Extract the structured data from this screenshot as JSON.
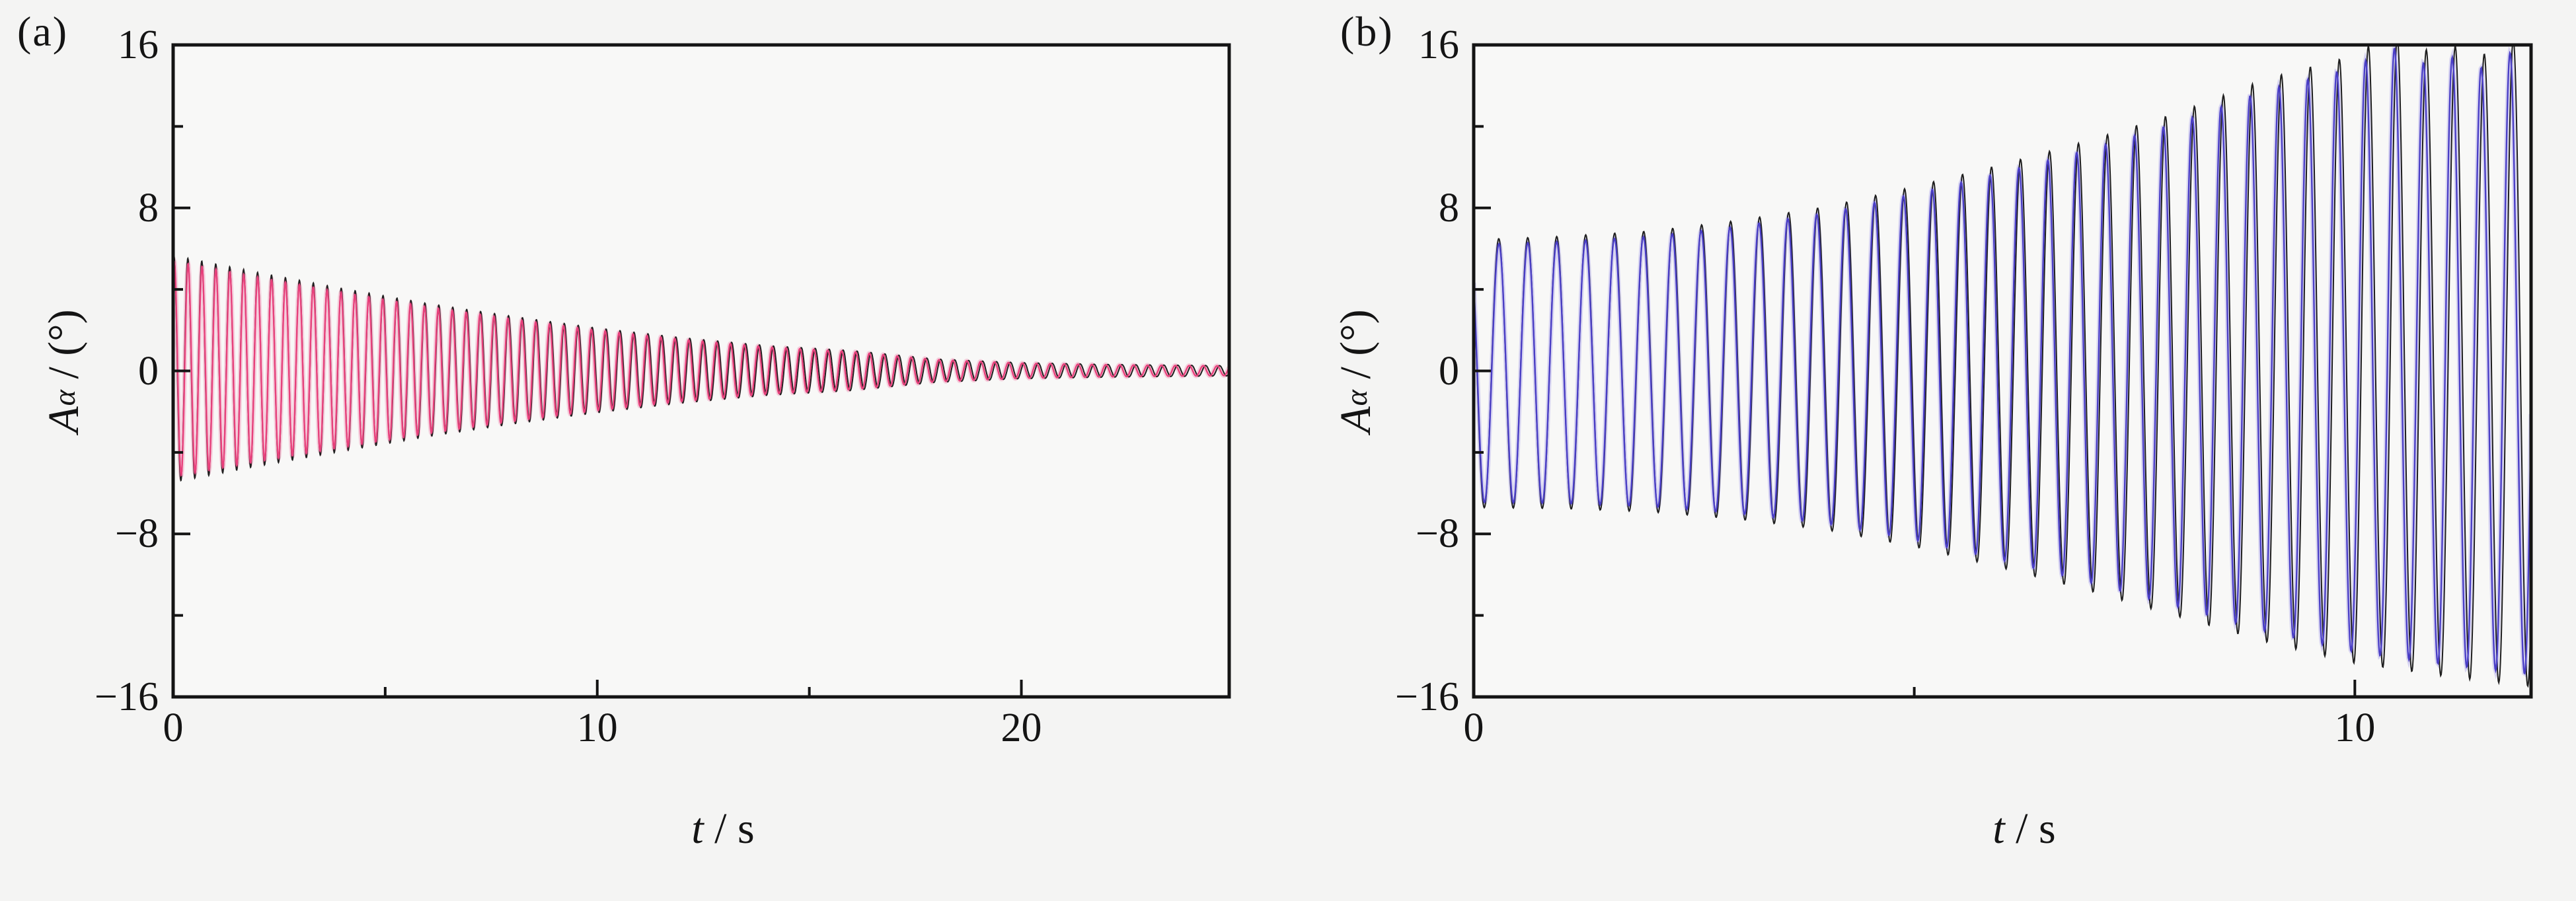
{
  "panels": [
    {
      "letter": "(a)",
      "ylabel_parts": {
        "var": "A",
        "sub": "α",
        "rest": " / (°)"
      },
      "xlabel_parts": {
        "var": "t",
        "rest": " / s"
      }
    },
    {
      "letter": "(b)",
      "ylabel_parts": {
        "var": "A",
        "sub": "α",
        "rest": " / (°)"
      },
      "xlabel_parts": {
        "var": "t",
        "rest": " / s"
      }
    }
  ],
  "colors": {
    "page_background": "#f4f4f3",
    "plot_background": "#f8f8f7",
    "axis": "#141414",
    "panel_a_line": "#e8417c",
    "panel_a_halo": "rgba(240,110,160,0.30)",
    "panel_b_line": "#4a3ec6",
    "panel_b_halo": "rgba(130,118,225,0.28)",
    "companion_line": "#1f1f1f"
  },
  "chart_data": [
    {
      "type": "line",
      "title": "",
      "xlabel": "t / s",
      "ylabel": "Aα / (°)",
      "xlim": [
        0,
        24.9
      ],
      "ylim": [
        -16,
        16
      ],
      "grid": false,
      "legend": "none",
      "xticks_major": [
        {
          "v": 0,
          "label": "0"
        },
        {
          "v": 10,
          "label": "10"
        },
        {
          "v": 20,
          "label": "20"
        }
      ],
      "xticks_minor": [
        5,
        15
      ],
      "yticks_major": [
        {
          "v": 16,
          "label": "16"
        },
        {
          "v": 8,
          "label": "8"
        },
        {
          "v": 0,
          "label": "0"
        },
        {
          "v": -8,
          "label": "−8"
        },
        {
          "v": -16,
          "label": "−16"
        }
      ],
      "yticks_minor": [
        12,
        4,
        -4,
        -12
      ],
      "behavior": "damped oscillation decaying toward 0",
      "frequency_hz": 3.05,
      "amplitude_envelope_deg": {
        "pos": [
          [
            0,
            5.4
          ],
          [
            2,
            4.6
          ],
          [
            4,
            3.85
          ],
          [
            6,
            3.15
          ],
          [
            8,
            2.55
          ],
          [
            10,
            2.0
          ],
          [
            12,
            1.55
          ],
          [
            14,
            1.18
          ],
          [
            16,
            0.95
          ],
          [
            17,
            0.75
          ],
          [
            18,
            0.55
          ],
          [
            20,
            0.38
          ],
          [
            22,
            0.3
          ],
          [
            24.9,
            0.24
          ]
        ],
        "neg": [
          [
            0,
            5.2
          ],
          [
            2,
            4.45
          ],
          [
            4,
            3.75
          ],
          [
            6,
            3.07
          ],
          [
            8,
            2.48
          ],
          [
            10,
            1.95
          ],
          [
            12,
            1.5
          ],
          [
            14,
            1.14
          ],
          [
            16,
            0.92
          ],
          [
            17,
            0.72
          ],
          [
            18,
            0.53
          ],
          [
            20,
            0.36
          ],
          [
            22,
            0.29
          ],
          [
            24.9,
            0.23
          ]
        ]
      },
      "series": [
        {
          "name": "dark-line",
          "color": "#1f1f1f",
          "width": 2.0,
          "frequency_hz": 3.042,
          "phase_rad": 1.22,
          "amp_scale": 1.05
        },
        {
          "name": "pink-line",
          "color": "#e8417c",
          "width": 2.4,
          "frequency_hz": 3.05,
          "phase_rad": 1.1,
          "amp_scale": 1.0,
          "halo_color": "rgba(240,110,160,0.30)",
          "halo_width": 7
        }
      ]
    },
    {
      "type": "line",
      "title": "",
      "xlabel": "t / s",
      "ylabel": "Aα / (°)",
      "xlim": [
        0,
        12.0
      ],
      "ylim": [
        -16,
        16
      ],
      "grid": false,
      "legend": "none",
      "xticks_major": [
        {
          "v": 0,
          "label": "0"
        },
        {
          "v": 10,
          "label": "10"
        }
      ],
      "xticks_minor": [
        5
      ],
      "yticks_major": [
        {
          "v": 16,
          "label": "16"
        },
        {
          "v": 8,
          "label": "8"
        },
        {
          "v": 0,
          "label": "0"
        },
        {
          "v": -8,
          "label": "−8"
        },
        {
          "v": -16,
          "label": "−16"
        }
      ],
      "yticks_minor": [
        12,
        4,
        -4,
        -12
      ],
      "behavior": "growing oscillation, amplitude increases until it nearly fills the axes",
      "frequency_hz": 3.05,
      "amplitude_envelope_deg": {
        "pos": [
          [
            0,
            6.2
          ],
          [
            1,
            6.35
          ],
          [
            2,
            6.6
          ],
          [
            3,
            7.1
          ],
          [
            4,
            7.75
          ],
          [
            5,
            8.7
          ],
          [
            6,
            9.75
          ],
          [
            7,
            10.9
          ],
          [
            8,
            12.2
          ],
          [
            9,
            13.8
          ],
          [
            10,
            14.9
          ],
          [
            10.4,
            16.0
          ],
          [
            10.7,
            15.0
          ],
          [
            11.05,
            15.5
          ],
          [
            11.4,
            14.8
          ],
          [
            11.75,
            15.6
          ],
          [
            12.0,
            15.8
          ]
        ],
        "neg": [
          [
            0,
            6.45
          ],
          [
            1,
            6.5
          ],
          [
            2,
            6.65
          ],
          [
            3,
            7.0
          ],
          [
            4,
            7.5
          ],
          [
            5,
            8.3
          ],
          [
            6,
            9.3
          ],
          [
            7,
            10.4
          ],
          [
            8,
            11.6
          ],
          [
            9,
            12.8
          ],
          [
            10,
            13.8
          ],
          [
            11,
            14.4
          ],
          [
            12.0,
            14.9
          ]
        ]
      },
      "series": [
        {
          "name": "dark-line",
          "color": "#1f1f1f",
          "width": 2.0,
          "frequency_hz": 3.04,
          "phase_rad": 2.42,
          "amp_scale": 1.04
        },
        {
          "name": "blue-line",
          "color": "#4a3ec6",
          "width": 2.4,
          "frequency_hz": 3.05,
          "phase_rad": 2.37,
          "amp_scale": 1.0,
          "halo_color": "rgba(130,118,225,0.28)",
          "halo_width": 7
        }
      ]
    }
  ]
}
